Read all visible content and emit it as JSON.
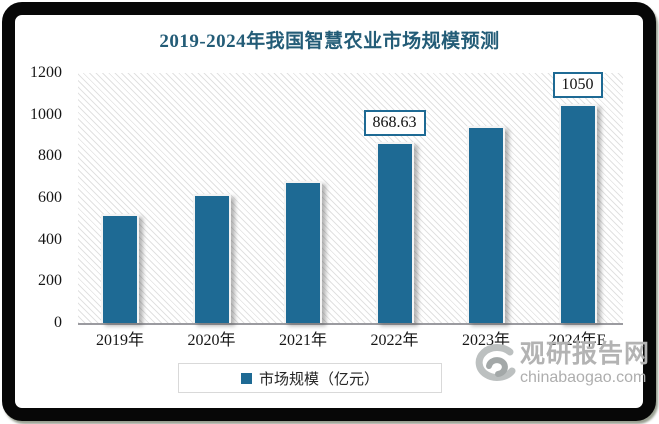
{
  "chart_data": {
    "type": "bar",
    "title": "2019-2024年我国智慧农业市场规模预测",
    "categories": [
      "2019年",
      "2020年",
      "2021年",
      "2022年",
      "2023年",
      "2024年E"
    ],
    "values": [
      525,
      620,
      680,
      868.63,
      945,
      1050
    ],
    "data_labels": [
      "",
      "",
      "",
      "868.63",
      "",
      "1050"
    ],
    "ylim": [
      0,
      1200
    ],
    "y_ticks": [
      0,
      200,
      400,
      600,
      800,
      1000,
      1200
    ],
    "grid": false,
    "legend_position": "bottom",
    "bar_color": "#1e6a94",
    "title_color": "#235c77",
    "axis_line_color": "#9b9ba0"
  },
  "legend": {
    "label": "市场规模（亿元）",
    "swatch_color": "#1e6a94"
  },
  "watermark": {
    "name": "观研报告网",
    "domain": "chinabaogao.com",
    "color": "#b3b3b3"
  },
  "frame": {
    "border_color": "#070707",
    "background": "#ffffff"
  }
}
